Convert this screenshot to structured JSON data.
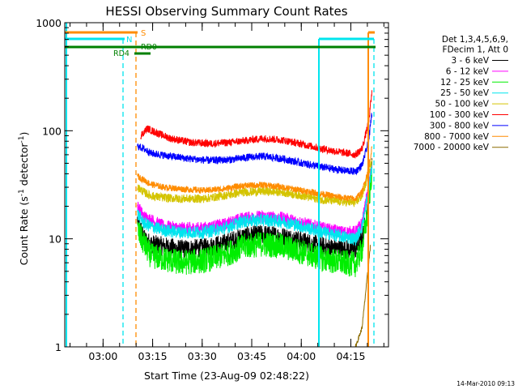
{
  "chart_data": {
    "type": "line",
    "title": "HESSI Observing Summary Count Rates",
    "xlabel": "Start Time (23-Aug-09 02:48:22)",
    "ylabel_main": "Count Rate (s",
    "ylabel_sup1": "-1",
    "ylabel_mid": " detector",
    "ylabel_sup2": "-1",
    "ylabel_end": ")",
    "yscale": "log",
    "ylim": [
      1,
      1000
    ],
    "xlim_minutes": [
      0,
      98
    ],
    "x_ticks": [
      {
        "label": "03:00",
        "minutes": 11.6
      },
      {
        "label": "03:15",
        "minutes": 26.6
      },
      {
        "label": "03:30",
        "minutes": 41.6
      },
      {
        "label": "03:45",
        "minutes": 56.6
      },
      {
        "label": "04:00",
        "minutes": 71.6
      },
      {
        "label": "04:15",
        "minutes": 86.6
      }
    ],
    "y_ticks": [
      {
        "label": "1",
        "value": 1
      },
      {
        "label": "10",
        "value": 10
      },
      {
        "label": "100",
        "value": 100
      },
      {
        "label": "1000",
        "value": 1000
      }
    ],
    "legend_header": [
      "Det 1,3,4,5,6,9,",
      "FDecim 1, Att 0"
    ],
    "series": [
      {
        "name": "3 - 6 keV",
        "color": "#000000",
        "noise": 0.09,
        "points": [
          [
            22,
            15
          ],
          [
            24,
            10
          ],
          [
            26,
            9
          ],
          [
            30,
            8.5
          ],
          [
            35,
            8
          ],
          [
            42,
            8.2
          ],
          [
            48,
            9
          ],
          [
            54,
            10.5
          ],
          [
            60,
            11
          ],
          [
            66,
            10.5
          ],
          [
            72,
            9.5
          ],
          [
            78,
            8.5
          ],
          [
            84,
            8
          ],
          [
            88,
            8
          ],
          [
            90,
            10
          ],
          [
            92,
            20
          ],
          [
            93,
            55
          ]
        ]
      },
      {
        "name": "6 - 12 keV",
        "color": "#ff00ff",
        "noise": 0.06,
        "points": [
          [
            22,
            20
          ],
          [
            24,
            16
          ],
          [
            26,
            15
          ],
          [
            30,
            13
          ],
          [
            35,
            12.5
          ],
          [
            42,
            12.5
          ],
          [
            48,
            13.5
          ],
          [
            54,
            15.5
          ],
          [
            60,
            16
          ],
          [
            66,
            15.5
          ],
          [
            72,
            14
          ],
          [
            78,
            12.5
          ],
          [
            84,
            11.5
          ],
          [
            88,
            11.5
          ],
          [
            90,
            14
          ],
          [
            92,
            30
          ],
          [
            93,
            50
          ]
        ]
      },
      {
        "name": "12 - 25 keV",
        "color": "#00ee00",
        "noise": 0.12,
        "points": [
          [
            22,
            12
          ],
          [
            24,
            9
          ],
          [
            26,
            7
          ],
          [
            30,
            6.5
          ],
          [
            35,
            6
          ],
          [
            42,
            6.3
          ],
          [
            48,
            7
          ],
          [
            54,
            8.5
          ],
          [
            60,
            9
          ],
          [
            66,
            8.5
          ],
          [
            72,
            7.5
          ],
          [
            78,
            6.5
          ],
          [
            84,
            6
          ],
          [
            88,
            5.8
          ],
          [
            90,
            8
          ],
          [
            92,
            20
          ],
          [
            93,
            45
          ]
        ]
      },
      {
        "name": "25 - 50 keV",
        "color": "#00e5ee",
        "noise": 0.06,
        "points": [
          [
            22,
            17
          ],
          [
            24,
            14
          ],
          [
            26,
            13
          ],
          [
            30,
            12
          ],
          [
            35,
            11.5
          ],
          [
            42,
            11.5
          ],
          [
            48,
            12.5
          ],
          [
            54,
            14.5
          ],
          [
            60,
            15
          ],
          [
            66,
            14.5
          ],
          [
            72,
            13
          ],
          [
            78,
            11.5
          ],
          [
            84,
            10.5
          ],
          [
            88,
            10
          ],
          [
            90,
            13
          ],
          [
            92,
            28
          ],
          [
            93,
            48
          ]
        ]
      },
      {
        "name": "50 - 100 keV",
        "color": "#d4c400",
        "noise": 0.04,
        "points": [
          [
            22,
            30
          ],
          [
            24,
            27
          ],
          [
            26,
            25
          ],
          [
            30,
            24
          ],
          [
            35,
            23.5
          ],
          [
            42,
            23.5
          ],
          [
            48,
            25
          ],
          [
            54,
            27
          ],
          [
            60,
            27.5
          ],
          [
            66,
            27
          ],
          [
            72,
            25
          ],
          [
            78,
            23
          ],
          [
            84,
            22
          ],
          [
            88,
            21.5
          ],
          [
            90,
            25
          ],
          [
            92,
            40
          ],
          [
            93,
            55
          ]
        ]
      },
      {
        "name": "100 - 300 keV",
        "color": "#ff0000",
        "noise": 0.035,
        "points": [
          [
            23,
            90
          ],
          [
            25,
            105
          ],
          [
            28,
            95
          ],
          [
            32,
            85
          ],
          [
            38,
            78
          ],
          [
            44,
            76
          ],
          [
            50,
            78
          ],
          [
            56,
            82
          ],
          [
            60,
            85
          ],
          [
            66,
            82
          ],
          [
            72,
            75
          ],
          [
            78,
            68
          ],
          [
            84,
            63
          ],
          [
            88,
            60
          ],
          [
            90,
            68
          ],
          [
            92,
            120
          ],
          [
            93,
            230
          ]
        ]
      },
      {
        "name": "300 - 800 keV",
        "color": "#0000ff",
        "noise": 0.035,
        "points": [
          [
            22,
            72
          ],
          [
            24,
            68
          ],
          [
            26,
            62
          ],
          [
            32,
            58
          ],
          [
            38,
            55
          ],
          [
            44,
            53
          ],
          [
            50,
            54
          ],
          [
            56,
            57
          ],
          [
            60,
            58
          ],
          [
            66,
            55
          ],
          [
            72,
            50
          ],
          [
            78,
            46
          ],
          [
            84,
            43
          ],
          [
            88,
            42
          ],
          [
            90,
            48
          ],
          [
            92,
            80
          ],
          [
            93,
            150
          ]
        ]
      },
      {
        "name": "800 - 7000 keV",
        "color": "#ff8c00",
        "noise": 0.03,
        "points": [
          [
            22,
            38
          ],
          [
            24,
            35
          ],
          [
            26,
            32
          ],
          [
            30,
            30
          ],
          [
            35,
            29
          ],
          [
            42,
            28
          ],
          [
            48,
            29
          ],
          [
            54,
            31
          ],
          [
            60,
            31.5
          ],
          [
            66,
            30
          ],
          [
            72,
            28
          ],
          [
            78,
            26
          ],
          [
            84,
            24
          ],
          [
            88,
            23.5
          ],
          [
            90,
            27
          ],
          [
            92,
            45
          ],
          [
            93,
            70
          ]
        ]
      },
      {
        "name": "7000 - 20000 keV",
        "color": "#8b6b00",
        "noise": 0.02,
        "points": [
          [
            88,
            1
          ],
          [
            90,
            1.5
          ],
          [
            91,
            3
          ],
          [
            92,
            6
          ],
          [
            92.6,
            9
          ]
        ]
      }
    ],
    "annotations": {
      "S": {
        "label": "S",
        "color": "#ff8c00"
      },
      "N": {
        "label": "N",
        "color": "#00e5ee"
      },
      "RD0": {
        "label": "RD0",
        "color": "#008000"
      },
      "RD4": {
        "label": "RD4",
        "color": "#008000"
      }
    },
    "footer_date": "14-Mar-2010 09:13"
  }
}
